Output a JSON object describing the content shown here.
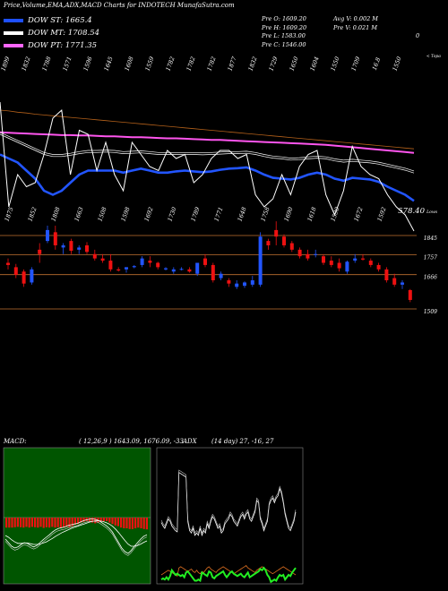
{
  "header": {
    "title": "Price,Volume,EMA,ADX,MACD Charts for INDOTECH MunafaSutra.com"
  },
  "legend": [
    {
      "label": "DOW ST: 1665.4",
      "color": "#1e50ff"
    },
    {
      "label": "DOW MT: 1708.54",
      "color": "#ffffff"
    },
    {
      "label": "DOW PT: 1771.35",
      "color": "#ff66ff"
    }
  ],
  "stats_left": [
    "Pre O: 1609.20",
    "Pre H: 1609.20",
    "Pre L: 1583.00",
    "Pre C: 1546.00"
  ],
  "stats_right": [
    "Avg V: 0.002 M",
    "Pre V: 0.021 M"
  ],
  "stats_mark": "0",
  "colors": {
    "up": "#2255ff",
    "down": "#ee1111",
    "ema_pink": "#ff55ee",
    "ema_brown": "#b3601a",
    "level": "#c07030"
  },
  "chart_data": [
    {
      "type": "line",
      "name": "ema-panel",
      "top_label": "< Topa",
      "x_labels": [
        "1899",
        "1832",
        "1788",
        "1571",
        "1596",
        "1645",
        "1608",
        "1559",
        "1782",
        "1782",
        "1782",
        "1877",
        "1832",
        "1729",
        "1650",
        "1604",
        "1550",
        "1709",
        "16.8",
        "1550"
      ],
      "series": [
        {
          "color": "#ffffff",
          "values": [
            1820,
            1560,
            1640,
            1610,
            1620,
            1690,
            1780,
            1800,
            1640,
            1750,
            1740,
            1650,
            1720,
            1640,
            1600,
            1720,
            1690,
            1660,
            1650,
            1700,
            1680,
            1690,
            1620,
            1640,
            1680,
            1700,
            1700,
            1680,
            1690,
            1590,
            1560,
            1580,
            1640,
            1590,
            1660,
            1690,
            1700,
            1590,
            1540,
            1600,
            1710,
            1660,
            1640,
            1630,
            1590,
            1560,
            1540,
            1500
          ]
        },
        {
          "color": "#2255ff",
          "values": [
            1690,
            1680,
            1670,
            1650,
            1630,
            1600,
            1590,
            1600,
            1620,
            1640,
            1650,
            1650,
            1650,
            1650,
            1645,
            1650,
            1655,
            1650,
            1645,
            1645,
            1648,
            1650,
            1648,
            1646,
            1648,
            1652,
            1655,
            1656,
            1658,
            1650,
            1640,
            1632,
            1630,
            1628,
            1632,
            1640,
            1645,
            1640,
            1630,
            1625,
            1632,
            1630,
            1628,
            1622,
            1610,
            1600,
            1590,
            1575
          ]
        },
        {
          "color": "#ffffff",
          "values": [
            1740,
            1730,
            1720,
            1710,
            1700,
            1690,
            1685,
            1685,
            1688,
            1692,
            1695,
            1695,
            1696,
            1695,
            1692,
            1693,
            1694,
            1692,
            1690,
            1690,
            1690,
            1690,
            1690,
            1689,
            1690,
            1691,
            1692,
            1692,
            1693,
            1690,
            1685,
            1681,
            1679,
            1676,
            1677,
            1679,
            1681,
            1679,
            1674,
            1671,
            1673,
            1671,
            1669,
            1666,
            1661,
            1656,
            1651,
            1644
          ]
        },
        {
          "color": "#ff55ee",
          "values": [
            1745,
            1744,
            1743,
            1742,
            1741,
            1740,
            1739,
            1738,
            1738,
            1737,
            1737,
            1736,
            1735,
            1735,
            1734,
            1733,
            1733,
            1732,
            1731,
            1730,
            1730,
            1729,
            1728,
            1727,
            1726,
            1726,
            1725,
            1724,
            1723,
            1722,
            1721,
            1720,
            1719,
            1718,
            1717,
            1716,
            1715,
            1714,
            1712,
            1710,
            1708,
            1706,
            1704,
            1702,
            1700,
            1698,
            1696,
            1694
          ]
        },
        {
          "color": "#b3601a",
          "values": [
            1800,
            1798,
            1795,
            1793,
            1790,
            1788,
            1786,
            1784,
            1782,
            1780,
            1778,
            1776,
            1774,
            1772,
            1770,
            1768,
            1766,
            1764,
            1762,
            1760,
            1758,
            1756,
            1754,
            1752,
            1750,
            1748,
            1746,
            1744,
            1742,
            1740,
            1738,
            1736,
            1734,
            1732,
            1730,
            1728,
            1726,
            1724,
            1722,
            1720,
            1718,
            1716,
            1714,
            1712,
            1710,
            1708,
            1706,
            1704
          ]
        }
      ]
    },
    {
      "type": "candlestick",
      "name": "price-panel",
      "right_label": "578.40",
      "right_label_suffix": "Lows",
      "levels": [
        {
          "label": "1845",
          "value": 1845
        },
        {
          "label": "1757",
          "value": 1757
        },
        {
          "label": "1666",
          "value": 1666
        },
        {
          "label": "1509",
          "value": 1509
        }
      ],
      "x_labels": [
        "1875",
        "1852",
        "1808",
        "1663",
        "1508",
        "1598",
        "1692",
        "1730",
        "1789",
        "1771",
        "1648",
        "1758",
        "1690",
        "1618",
        "1590",
        "1672",
        "1592"
      ],
      "candles": [
        {
          "o": 1720,
          "h": 1740,
          "l": 1690,
          "c": 1710
        },
        {
          "o": 1700,
          "h": 1715,
          "l": 1650,
          "c": 1665
        },
        {
          "o": 1680,
          "h": 1690,
          "l": 1610,
          "c": 1625
        },
        {
          "o": 1630,
          "h": 1700,
          "l": 1620,
          "c": 1690
        },
        {
          "o": 1780,
          "h": 1810,
          "l": 1720,
          "c": 1760
        },
        {
          "o": 1820,
          "h": 1890,
          "l": 1810,
          "c": 1870
        },
        {
          "o": 1860,
          "h": 1890,
          "l": 1780,
          "c": 1800
        },
        {
          "o": 1790,
          "h": 1810,
          "l": 1760,
          "c": 1800
        },
        {
          "o": 1820,
          "h": 1830,
          "l": 1760,
          "c": 1775
        },
        {
          "o": 1780,
          "h": 1800,
          "l": 1760,
          "c": 1790
        },
        {
          "o": 1800,
          "h": 1815,
          "l": 1760,
          "c": 1770
        },
        {
          "o": 1760,
          "h": 1780,
          "l": 1730,
          "c": 1740
        },
        {
          "o": 1740,
          "h": 1760,
          "l": 1720,
          "c": 1730
        },
        {
          "o": 1730,
          "h": 1760,
          "l": 1680,
          "c": 1690
        },
        {
          "o": 1690,
          "h": 1700,
          "l": 1680,
          "c": 1685
        },
        {
          "o": 1690,
          "h": 1700,
          "l": 1675,
          "c": 1700
        },
        {
          "o": 1700,
          "h": 1710,
          "l": 1695,
          "c": 1705
        },
        {
          "o": 1710,
          "h": 1750,
          "l": 1700,
          "c": 1740
        },
        {
          "o": 1730,
          "h": 1750,
          "l": 1700,
          "c": 1720
        },
        {
          "o": 1720,
          "h": 1725,
          "l": 1690,
          "c": 1700
        },
        {
          "o": 1690,
          "h": 1700,
          "l": 1685,
          "c": 1695
        },
        {
          "o": 1680,
          "h": 1700,
          "l": 1670,
          "c": 1690
        },
        {
          "o": 1690,
          "h": 1700,
          "l": 1685,
          "c": 1692
        },
        {
          "o": 1690,
          "h": 1700,
          "l": 1675,
          "c": 1680
        },
        {
          "o": 1670,
          "h": 1720,
          "l": 1660,
          "c": 1720
        },
        {
          "o": 1740,
          "h": 1760,
          "l": 1700,
          "c": 1710
        },
        {
          "o": 1710,
          "h": 1720,
          "l": 1630,
          "c": 1640
        },
        {
          "o": 1650,
          "h": 1680,
          "l": 1640,
          "c": 1670
        },
        {
          "o": 1640,
          "h": 1650,
          "l": 1610,
          "c": 1625
        },
        {
          "o": 1610,
          "h": 1640,
          "l": 1600,
          "c": 1625
        },
        {
          "o": 1615,
          "h": 1635,
          "l": 1605,
          "c": 1630
        },
        {
          "o": 1620,
          "h": 1660,
          "l": 1610,
          "c": 1640
        },
        {
          "o": 1620,
          "h": 1860,
          "l": 1610,
          "c": 1840
        },
        {
          "o": 1820,
          "h": 1830,
          "l": 1780,
          "c": 1800
        },
        {
          "o": 1870,
          "h": 1910,
          "l": 1800,
          "c": 1840
        },
        {
          "o": 1840,
          "h": 1850,
          "l": 1790,
          "c": 1800
        },
        {
          "o": 1810,
          "h": 1820,
          "l": 1770,
          "c": 1780
        },
        {
          "o": 1780,
          "h": 1790,
          "l": 1740,
          "c": 1750
        },
        {
          "o": 1760,
          "h": 1780,
          "l": 1730,
          "c": 1740
        },
        {
          "o": 1760,
          "h": 1780,
          "l": 1745,
          "c": 1760
        },
        {
          "o": 1750,
          "h": 1760,
          "l": 1710,
          "c": 1720
        },
        {
          "o": 1730,
          "h": 1750,
          "l": 1700,
          "c": 1710
        },
        {
          "o": 1720,
          "h": 1740,
          "l": 1680,
          "c": 1695
        },
        {
          "o": 1680,
          "h": 1730,
          "l": 1670,
          "c": 1725
        },
        {
          "o": 1730,
          "h": 1760,
          "l": 1720,
          "c": 1740
        },
        {
          "o": 1740,
          "h": 1760,
          "l": 1730,
          "c": 1735
        },
        {
          "o": 1730,
          "h": 1740,
          "l": 1700,
          "c": 1710
        },
        {
          "o": 1710,
          "h": 1720,
          "l": 1680,
          "c": 1690
        },
        {
          "o": 1690,
          "h": 1700,
          "l": 1630,
          "c": 1640
        },
        {
          "o": 1650,
          "h": 1670,
          "l": 1610,
          "c": 1620
        },
        {
          "o": 1620,
          "h": 1640,
          "l": 1600,
          "c": 1630
        },
        {
          "o": 1595,
          "h": 1600,
          "l": 1540,
          "c": 1550
        }
      ]
    },
    {
      "type": "bar",
      "name": "macd-panel",
      "label": "MACD:",
      "params": "( 12,26,9 ) 1643.09, 1676.09, -33",
      "histogram": [
        -28,
        -28,
        -28,
        -27,
        -26,
        -27,
        -28,
        -26,
        -28,
        -26,
        -27,
        -28,
        -26,
        -29,
        -27,
        -28,
        -26,
        -28,
        -27,
        -29,
        -28,
        -26,
        -28,
        -24,
        -20,
        -18,
        -14,
        -12,
        -10,
        -12,
        -14,
        -16,
        -14,
        -12,
        -10,
        -10,
        -14,
        -18,
        -22,
        -24,
        -28,
        -30,
        -30,
        -32,
        -32,
        -30,
        -28,
        -30,
        -32,
        -33
      ],
      "macd": [
        -60,
        -70,
        -80,
        -85,
        -82,
        -75,
        -70,
        -72,
        -78,
        -82,
        -78,
        -70,
        -62,
        -55,
        -48,
        -40,
        -34,
        -30,
        -28,
        -26,
        -22,
        -20,
        -18,
        -16,
        -12,
        -8,
        -6,
        -4,
        -4,
        -6,
        -10,
        -16,
        -22,
        -30,
        -40,
        -55,
        -70,
        -85,
        -95,
        -100,
        -92,
        -80,
        -70,
        -60,
        -52,
        -48
      ],
      "signal": [
        -50,
        -55,
        -62,
        -68,
        -72,
        -72,
        -71,
        -71,
        -73,
        -75,
        -75,
        -74,
        -71,
        -68,
        -63,
        -58,
        -52,
        -47,
        -42,
        -38,
        -34,
        -30,
        -27,
        -24,
        -21,
        -18,
        -15,
        -12,
        -10,
        -9,
        -9,
        -11,
        -14,
        -18,
        -24,
        -32,
        -42,
        -53,
        -64,
        -74,
        -80,
        -80,
        -78,
        -74,
        -69,
        -65
      ]
    },
    {
      "type": "line",
      "name": "adx-panel",
      "label": "ADX",
      "params": "(14 day) 27, -16, 27",
      "white": [
        55,
        52,
        50,
        54,
        58,
        56,
        52,
        50,
        48,
        47,
        98,
        97,
        96,
        95,
        94,
        56,
        48,
        46,
        50,
        44,
        46,
        44,
        50,
        44,
        48,
        46,
        54,
        50,
        56,
        60,
        58,
        54,
        50,
        52,
        46,
        48,
        54,
        56,
        58,
        62,
        60,
        56,
        54,
        52,
        56,
        60,
        62,
        58,
        62,
        64,
        58,
        56,
        60,
        64,
        74,
        72,
        58,
        54,
        48,
        52,
        56,
        70,
        74,
        76,
        72,
        76,
        78,
        84,
        80,
        72,
        62,
        56,
        50,
        48,
        52,
        56,
        64
      ],
      "green": [
        6,
        7,
        6,
        8,
        6,
        9,
        14,
        12,
        10,
        11,
        10,
        9,
        10,
        8,
        12,
        13,
        11,
        9,
        7,
        5,
        5,
        6,
        5,
        12,
        11,
        10,
        9,
        13,
        12,
        8,
        7,
        9,
        10,
        11,
        12,
        13,
        10,
        8,
        10,
        12,
        13,
        11,
        10,
        9,
        10,
        11,
        9,
        8,
        10,
        12,
        8,
        9,
        10,
        11,
        12,
        13,
        15,
        14,
        16,
        14,
        10,
        8,
        4,
        5,
        6,
        5,
        8,
        10,
        9,
        10,
        6,
        8,
        10,
        9,
        12,
        14,
        16
      ],
      "orange": [
        10,
        11,
        12,
        13,
        14,
        13,
        12,
        11,
        10,
        9,
        16,
        17,
        16,
        15,
        14,
        13,
        14,
        15,
        13,
        12,
        14,
        12,
        11,
        13,
        12,
        14,
        16,
        17,
        15,
        14,
        13,
        12,
        14,
        15,
        16,
        17,
        16,
        15,
        14,
        13,
        12,
        11,
        12,
        13,
        14,
        15,
        16,
        17,
        18,
        16,
        15,
        14,
        13,
        12,
        14,
        15,
        16,
        17,
        16,
        15,
        14,
        13,
        12,
        11,
        12,
        13,
        14,
        15,
        16,
        17,
        16,
        15,
        14,
        13,
        12,
        11,
        10
      ]
    }
  ]
}
